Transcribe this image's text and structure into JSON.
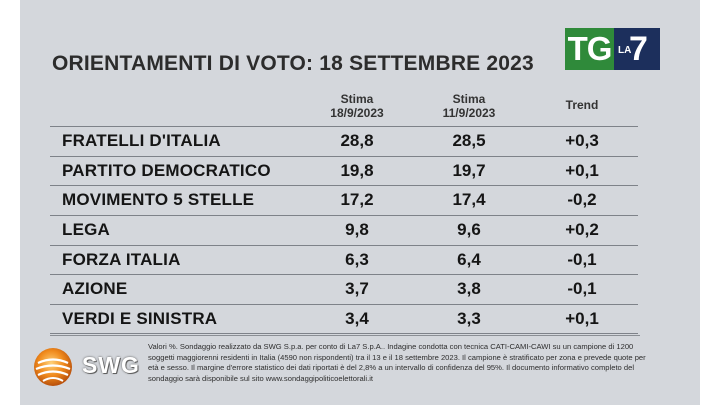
{
  "broadcaster": {
    "tg": "TG",
    "la": "LA",
    "seven": "7"
  },
  "title": "ORIENTAMENTI DI VOTO: 18 SETTEMBRE 2023",
  "columns": {
    "c1_line1": "Stima",
    "c1_line2": "18/9/2023",
    "c2_line1": "Stima",
    "c2_line2": "11/9/2023",
    "c3": "Trend"
  },
  "rows": [
    {
      "party": "FRATELLI D'ITALIA",
      "v1": "28,8",
      "v2": "28,5",
      "trend": "+0,3"
    },
    {
      "party": "PARTITO DEMOCRATICO",
      "v1": "19,8",
      "v2": "19,7",
      "trend": "+0,1"
    },
    {
      "party": "MOVIMENTO 5 STELLE",
      "v1": "17,2",
      "v2": "17,4",
      "trend": "-0,2"
    },
    {
      "party": "LEGA",
      "v1": "9,8",
      "v2": "9,6",
      "trend": "+0,2"
    },
    {
      "party": "FORZA ITALIA",
      "v1": "6,3",
      "v2": "6,4",
      "trend": "-0,1"
    },
    {
      "party": "AZIONE",
      "v1": "3,7",
      "v2": "3,8",
      "trend": "-0,1"
    },
    {
      "party": "VERDI E SINISTRA",
      "v1": "3,4",
      "v2": "3,3",
      "trend": "+0,1"
    }
  ],
  "source": {
    "logo_text": "SWG",
    "note": "Valori %. Sondaggio realizzato da SWG S.p.a. per conto di La7 S.p.A.. Indagine condotta con tecnica CATI-CAMI-CAWI su un campione di 1200 soggetti maggiorenni residenti in Italia (4590 non rispondenti) tra il 13 e il 18 settembre 2023. Il campione è stratificato per zona e prevede quote per età e sesso. Il margine d'errore statistico dei dati riportati è del 2,8% a un intervallo di confidenza del 95%. Il documento informativo completo del sondaggio sarà disponibile sul sito www.sondaggipoliticoelettorali.it"
  },
  "colors": {
    "panel": "#d4d7dc",
    "tg_green": "#2f8a3a",
    "la7_blue": "#1c2f5c",
    "swg_orange": "#f08a1c"
  }
}
